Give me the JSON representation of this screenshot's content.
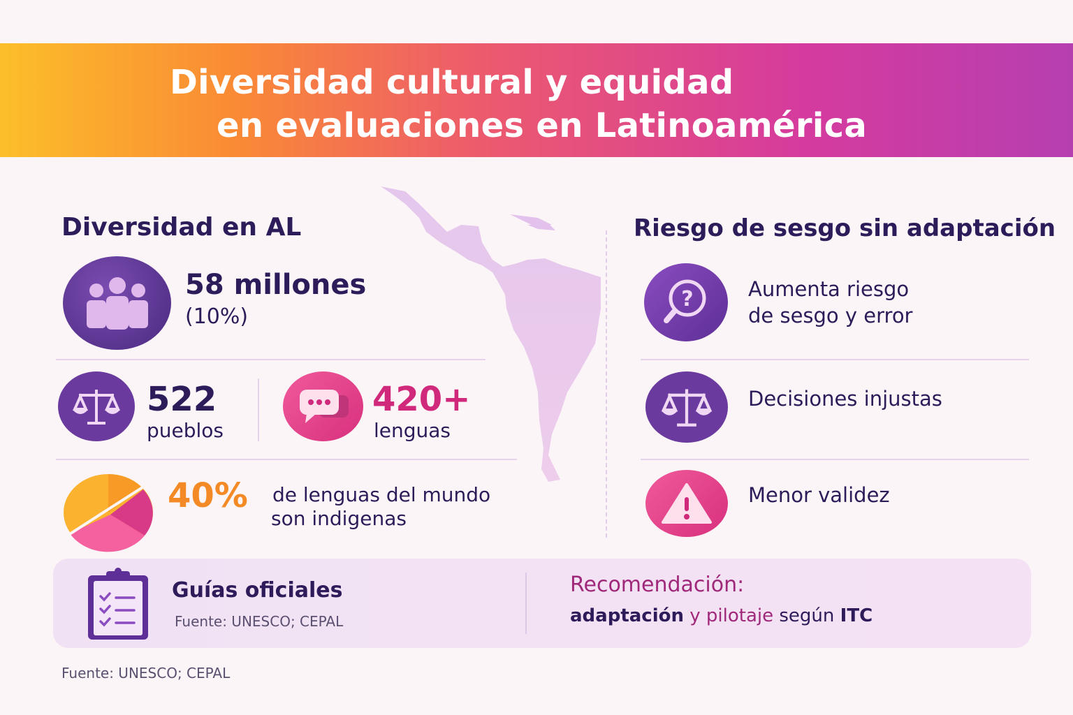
{
  "title": {
    "line1": "Diversidad cultural y equidad",
    "line2": "en evaluaciones en Latinoamérica"
  },
  "left": {
    "heading": "Diversidad en AL",
    "population": {
      "value": "58 millones",
      "percent": "(10%)",
      "icon": "people-icon"
    },
    "peoples": {
      "value": "522",
      "label": "pueblos",
      "icon": "scale-icon"
    },
    "languages": {
      "value": "420+",
      "label": "lenguas",
      "icon": "speech-bubbles-icon"
    },
    "world": {
      "value": "40%",
      "line1": "de lenguas del mundo",
      "line2": "son indigenas",
      "icon": "pie-chart-icon"
    }
  },
  "map": {
    "icon": "latin-america-map"
  },
  "right": {
    "heading": "Riesgo de sesgo sin adaptación",
    "items": [
      {
        "icon": "magnifier-question-icon",
        "line1": "Aumenta riesgo",
        "line2": "de sesgo y error"
      },
      {
        "icon": "scale-icon",
        "line1": "Decisiones injustas",
        "line2": ""
      },
      {
        "icon": "warning-icon",
        "line1": "Menor validez",
        "line2": ""
      }
    ]
  },
  "bottom": {
    "guides_title": "Guías oficiales",
    "guides_source": "Fuente: UNESCO; CEPAL",
    "rec_title": "Recomendación:",
    "rec_parts": [
      "adaptación",
      " y ",
      "pilotaje",
      " según ",
      "ITC"
    ]
  },
  "footer": "Fuente: UNESCO; CEPAL",
  "colors": {
    "dark": "#2d1b5a",
    "purple": "#6a3a9e",
    "pink": "#d0287a",
    "orange": "#f48a25",
    "magenta": "#a0287a"
  }
}
